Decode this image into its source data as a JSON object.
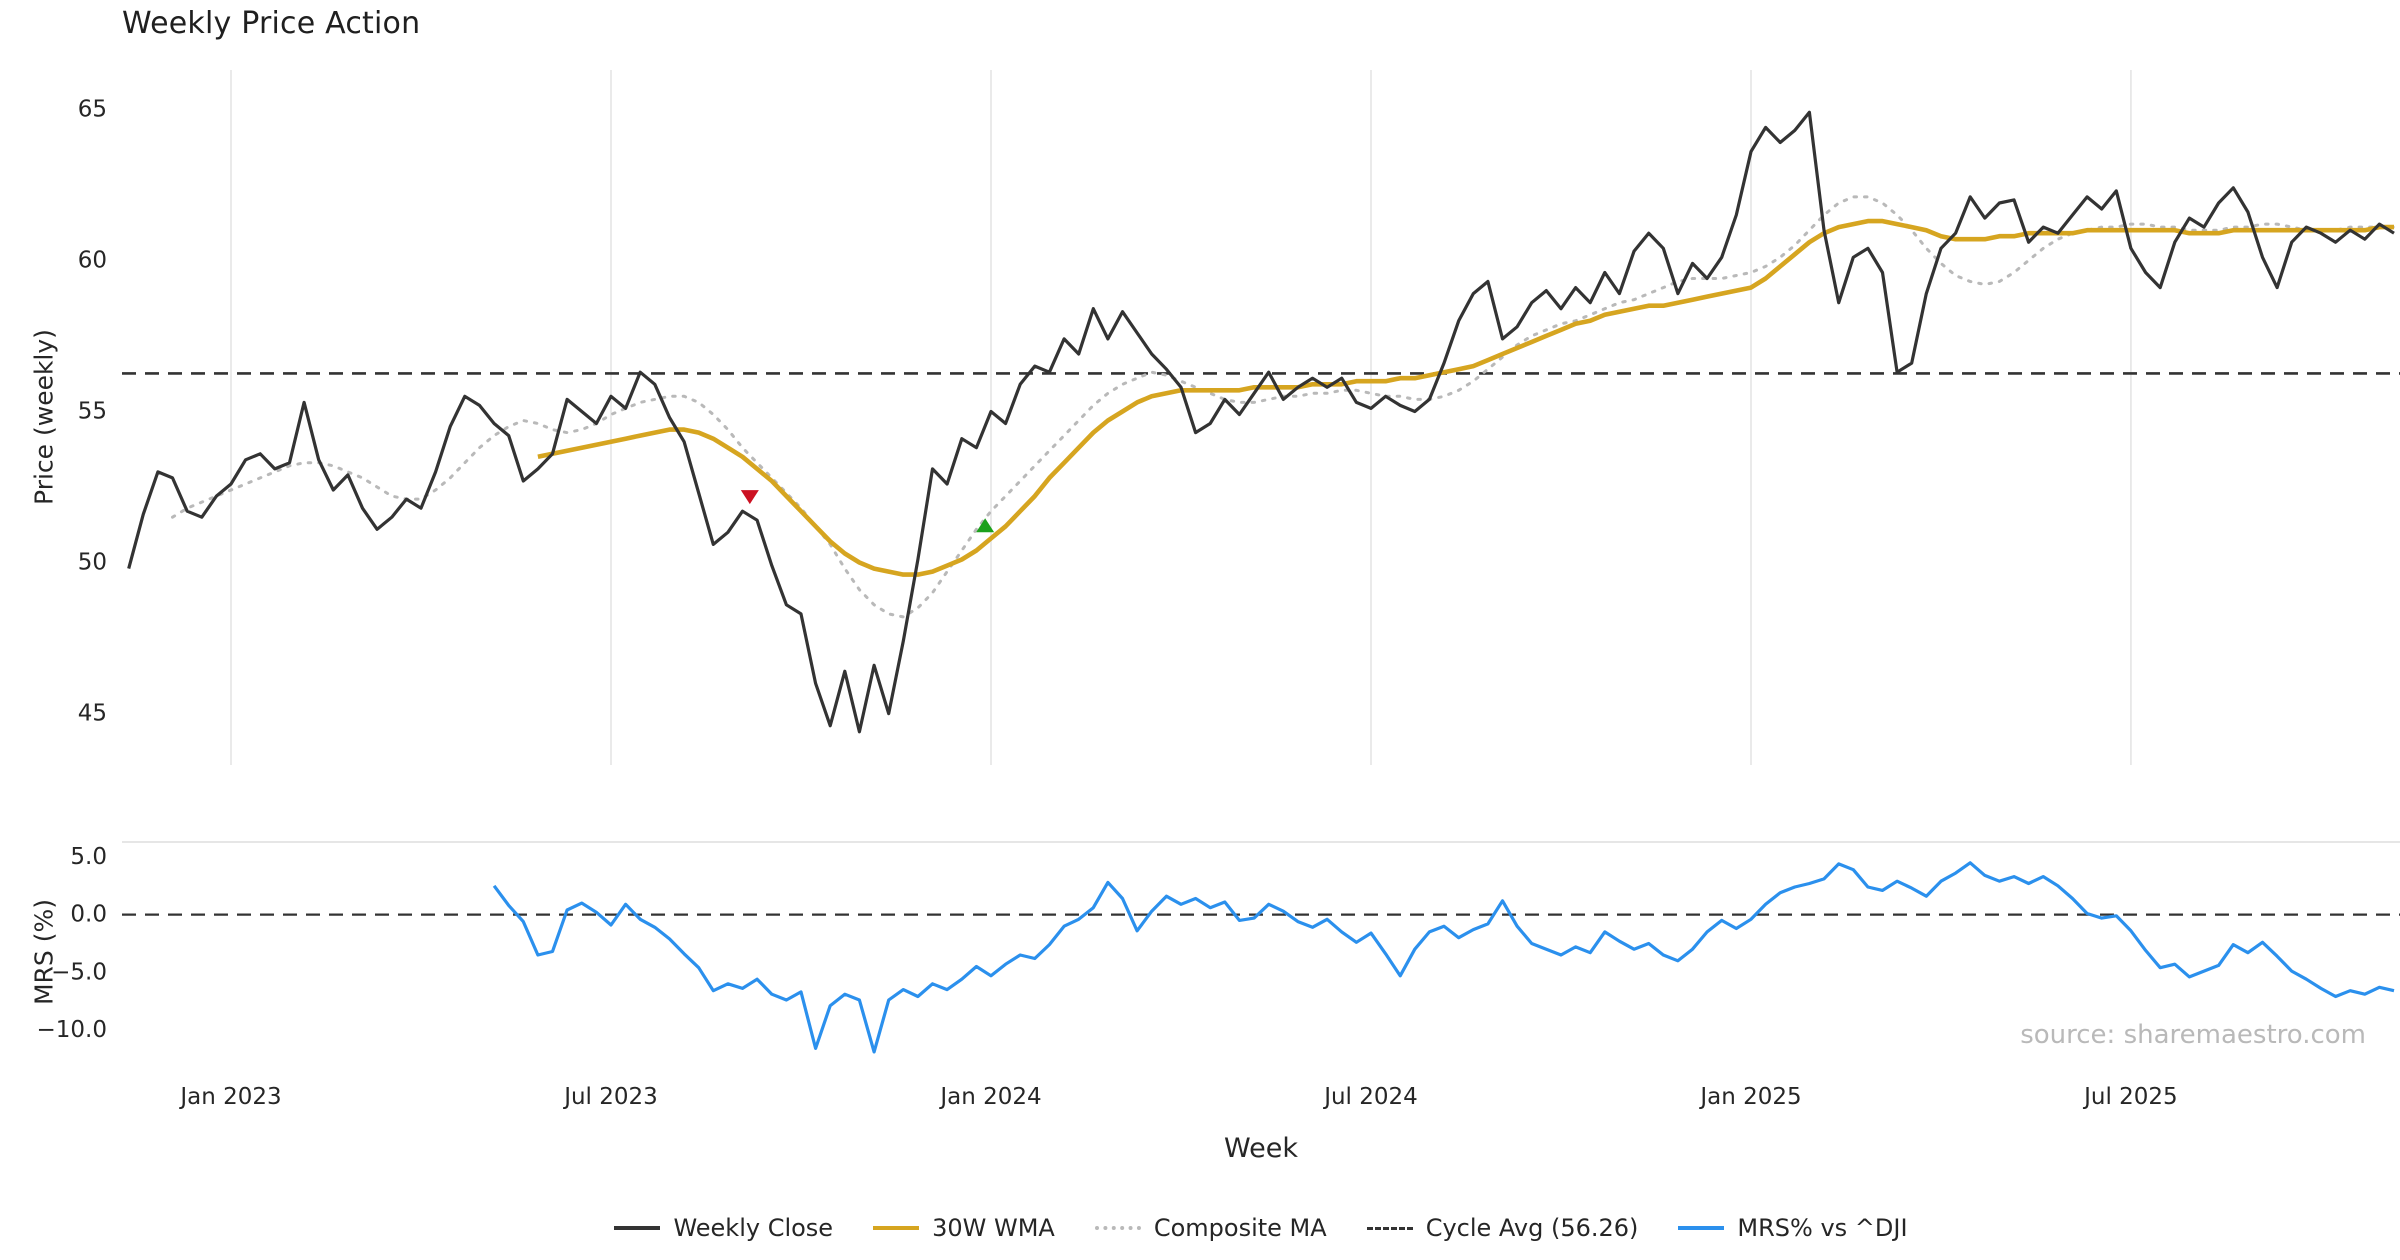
{
  "title": "Weekly Price Action",
  "source": "source: sharemaestro.com",
  "x_label": "Week",
  "x_ticks": [
    {
      "label": "Jan 2023",
      "week": 0
    },
    {
      "label": "Jul 2023",
      "week": 26
    },
    {
      "label": "Jan 2024",
      "week": 52
    },
    {
      "label": "Jul 2024",
      "week": 78
    },
    {
      "label": "Jan 2025",
      "week": 104
    },
    {
      "label": "Jul 2025",
      "week": 130
    }
  ],
  "colors": {
    "close": "#333333",
    "wma": "#d6a520",
    "composite": "#b9b9b9",
    "cycle_avg": "#333333",
    "mrs": "#2b90ed",
    "sell_marker": "#cc1122",
    "buy_marker": "#1ca01c",
    "grid": "#e8e8e8"
  },
  "chart_data": [
    {
      "type": "line",
      "panel": "price",
      "title": "Weekly Price Action",
      "ylabel": "Price (weekly)",
      "ylim": [
        43.3,
        66.3
      ],
      "grid": "vertical-only",
      "yticks": [
        {
          "label": "65",
          "value": 65
        },
        {
          "label": "60",
          "value": 60
        },
        {
          "label": "55",
          "value": 55
        },
        {
          "label": "50",
          "value": 50
        },
        {
          "label": "45",
          "value": 45
        }
      ],
      "series": [
        {
          "name": "Weekly Close",
          "color": "#333333",
          "style": "solid",
          "width": 3.2,
          "start_week": -7,
          "values": [
            49.8,
            51.6,
            53.0,
            52.8,
            51.7,
            51.5,
            52.2,
            52.6,
            53.4,
            53.6,
            53.1,
            53.3,
            55.3,
            53.4,
            52.4,
            52.9,
            51.8,
            51.1,
            51.5,
            52.1,
            51.8,
            53.0,
            54.5,
            55.5,
            55.2,
            54.6,
            54.2,
            52.7,
            53.1,
            53.6,
            55.4,
            55.0,
            54.6,
            55.5,
            55.1,
            56.3,
            55.9,
            54.8,
            54.0,
            52.3,
            50.6,
            51.0,
            51.7,
            51.4,
            49.9,
            48.6,
            48.3,
            46.0,
            44.6,
            46.4,
            44.4,
            46.6,
            45.0,
            47.4,
            50.1,
            53.1,
            52.6,
            54.1,
            53.8,
            55.0,
            54.6,
            55.9,
            56.5,
            56.3,
            57.4,
            56.9,
            58.4,
            57.4,
            58.3,
            57.6,
            56.9,
            56.4,
            55.8,
            54.3,
            54.6,
            55.4,
            54.9,
            55.6,
            56.3,
            55.4,
            55.8,
            56.1,
            55.8,
            56.1,
            55.3,
            55.1,
            55.5,
            55.2,
            55.0,
            55.4,
            56.6,
            58.0,
            58.9,
            59.3,
            57.4,
            57.8,
            58.6,
            59.0,
            58.4,
            59.1,
            58.6,
            59.6,
            58.9,
            60.3,
            60.9,
            60.4,
            58.9,
            59.9,
            59.4,
            60.1,
            61.5,
            63.6,
            64.4,
            63.9,
            64.3,
            64.9,
            61.0,
            58.6,
            60.1,
            60.4,
            59.6,
            56.3,
            56.6,
            58.9,
            60.4,
            60.9,
            62.1,
            61.4,
            61.9,
            62.0,
            60.6,
            61.1,
            60.9,
            61.5,
            62.1,
            61.7,
            62.3,
            60.4,
            59.6,
            59.1,
            60.6,
            61.4,
            61.1,
            61.9,
            62.4,
            61.6,
            60.1,
            59.1,
            60.6,
            61.1,
            60.9,
            60.6,
            61.0,
            60.7,
            61.2,
            60.9
          ]
        },
        {
          "name": "30W WMA",
          "color": "#d6a520",
          "style": "solid",
          "width": 4.6,
          "start_week": 21,
          "values": [
            53.5,
            53.6,
            53.7,
            53.8,
            53.9,
            54.0,
            54.1,
            54.2,
            54.3,
            54.4,
            54.4,
            54.3,
            54.1,
            53.8,
            53.5,
            53.1,
            52.7,
            52.2,
            51.7,
            51.2,
            50.7,
            50.3,
            50.0,
            49.8,
            49.7,
            49.6,
            49.6,
            49.7,
            49.9,
            50.1,
            50.4,
            50.8,
            51.2,
            51.7,
            52.2,
            52.8,
            53.3,
            53.8,
            54.3,
            54.7,
            55.0,
            55.3,
            55.5,
            55.6,
            55.7,
            55.7,
            55.7,
            55.7,
            55.7,
            55.8,
            55.8,
            55.8,
            55.8,
            55.9,
            55.9,
            55.9,
            56.0,
            56.0,
            56.0,
            56.1,
            56.1,
            56.2,
            56.3,
            56.4,
            56.5,
            56.7,
            56.9,
            57.1,
            57.3,
            57.5,
            57.7,
            57.9,
            58.0,
            58.2,
            58.3,
            58.4,
            58.5,
            58.5,
            58.6,
            58.7,
            58.8,
            58.9,
            59.0,
            59.1,
            59.4,
            59.8,
            60.2,
            60.6,
            60.9,
            61.1,
            61.2,
            61.3,
            61.3,
            61.2,
            61.1,
            61.0,
            60.8,
            60.7,
            60.7,
            60.7,
            60.8,
            60.8,
            60.9,
            60.9,
            60.9,
            60.9,
            61.0,
            61.0,
            61.0,
            61.0,
            61.0,
            61.0,
            61.0,
            60.9,
            60.9,
            60.9,
            61.0,
            61.0,
            61.0,
            61.0,
            61.0,
            61.0,
            61.0,
            61.0,
            61.0,
            61.0,
            61.1,
            61.1
          ]
        },
        {
          "name": "Composite MA",
          "color": "#b9b9b9",
          "style": "dotted",
          "width": 3.0,
          "start_week": -4,
          "values": [
            51.5,
            51.8,
            52.0,
            52.2,
            52.4,
            52.6,
            52.8,
            53.0,
            53.2,
            53.3,
            53.3,
            53.2,
            53.0,
            52.8,
            52.5,
            52.2,
            52.1,
            52.1,
            52.4,
            52.8,
            53.3,
            53.8,
            54.2,
            54.5,
            54.7,
            54.6,
            54.4,
            54.3,
            54.4,
            54.6,
            54.9,
            55.1,
            55.3,
            55.4,
            55.5,
            55.5,
            55.3,
            54.9,
            54.4,
            53.8,
            53.3,
            52.8,
            52.3,
            51.8,
            51.2,
            50.6,
            49.8,
            49.1,
            48.6,
            48.3,
            48.2,
            48.5,
            49.0,
            49.7,
            50.4,
            51.1,
            51.7,
            52.2,
            52.7,
            53.2,
            53.7,
            54.2,
            54.7,
            55.2,
            55.6,
            55.9,
            56.1,
            56.3,
            56.2,
            56.0,
            55.8,
            55.6,
            55.4,
            55.3,
            55.3,
            55.4,
            55.5,
            55.5,
            55.6,
            55.6,
            55.7,
            55.7,
            55.6,
            55.5,
            55.5,
            55.4,
            55.4,
            55.5,
            55.7,
            56.0,
            56.4,
            56.8,
            57.2,
            57.5,
            57.7,
            57.9,
            58.0,
            58.2,
            58.4,
            58.6,
            58.7,
            58.9,
            59.1,
            59.3,
            59.4,
            59.4,
            59.4,
            59.5,
            59.6,
            59.8,
            60.1,
            60.5,
            61.0,
            61.5,
            61.9,
            62.1,
            62.1,
            61.9,
            61.5,
            61.0,
            60.4,
            59.9,
            59.5,
            59.3,
            59.2,
            59.3,
            59.6,
            60.0,
            60.4,
            60.7,
            60.9,
            61.0,
            61.1,
            61.1,
            61.2,
            61.2,
            61.1,
            61.1,
            61.0,
            61.0,
            61.0,
            61.1,
            61.1,
            61.2,
            61.2,
            61.1,
            61.0,
            61.0,
            61.0,
            61.1,
            61.1,
            61.1,
            61.1
          ]
        },
        {
          "name": "Cycle Avg (56.26)",
          "type": "hline",
          "value": 56.26,
          "color": "#333333",
          "style": "dashed",
          "width": 2.6
        }
      ],
      "markers": [
        {
          "name": "sell-signal",
          "shape": "triangle-down",
          "color": "#cc1122",
          "week": 35.5,
          "value": 52.2
        },
        {
          "name": "buy-signal",
          "shape": "triangle-up",
          "color": "#1ca01c",
          "week": 51.6,
          "value": 51.2
        }
      ]
    },
    {
      "type": "line",
      "panel": "mrs",
      "ylabel": "MRS (%)",
      "ylim": [
        -13.3,
        6.3
      ],
      "yticks": [
        {
          "label": "5.0",
          "value": 5
        },
        {
          "label": "0.0",
          "value": 0
        },
        {
          "label": "−5.0",
          "value": -5
        },
        {
          "label": "−10.0",
          "value": -10
        }
      ],
      "series": [
        {
          "name": "MRS% vs ^DJI",
          "color": "#2b90ed",
          "style": "solid",
          "width": 3.2,
          "start_week": 18,
          "values": [
            2.5,
            0.8,
            -0.6,
            -3.5,
            -3.2,
            0.4,
            1.0,
            0.2,
            -0.9,
            0.9,
            -0.4,
            -1.1,
            -2.1,
            -3.4,
            -4.6,
            -6.6,
            -6.0,
            -6.4,
            -5.6,
            -6.9,
            -7.4,
            -6.7,
            -11.6,
            -7.9,
            -6.9,
            -7.4,
            -11.9,
            -7.4,
            -6.5,
            -7.1,
            -6.0,
            -6.5,
            -5.6,
            -4.5,
            -5.3,
            -4.3,
            -3.5,
            -3.8,
            -2.6,
            -1.0,
            -0.4,
            0.6,
            2.8,
            1.4,
            -1.4,
            0.3,
            1.6,
            0.9,
            1.4,
            0.6,
            1.1,
            -0.5,
            -0.3,
            0.9,
            0.3,
            -0.6,
            -1.1,
            -0.4,
            -1.5,
            -2.4,
            -1.6,
            -3.4,
            -5.3,
            -3.0,
            -1.5,
            -1.0,
            -2.0,
            -1.3,
            -0.8,
            1.2,
            -1.0,
            -2.5,
            -3.0,
            -3.5,
            -2.8,
            -3.3,
            -1.5,
            -2.3,
            -3.0,
            -2.5,
            -3.5,
            -4.0,
            -3.0,
            -1.5,
            -0.5,
            -1.2,
            -0.4,
            0.9,
            1.9,
            2.4,
            2.7,
            3.1,
            4.4,
            3.9,
            2.4,
            2.1,
            2.9,
            2.3,
            1.6,
            2.9,
            3.6,
            4.5,
            3.4,
            2.9,
            3.3,
            2.7,
            3.3,
            2.5,
            1.4,
            0.1,
            -0.3,
            -0.1,
            -1.4,
            -3.1,
            -4.6,
            -4.3,
            -5.4,
            -4.9,
            -4.4,
            -2.6,
            -3.3,
            -2.4,
            -3.6,
            -4.9,
            -5.6,
            -6.4,
            -7.1,
            -6.6,
            -6.9,
            -6.3,
            -6.6
          ]
        },
        {
          "name": "Zero Line",
          "type": "hline",
          "value": 0,
          "color": "#333333",
          "style": "dashed",
          "width": 2.3
        }
      ]
    }
  ],
  "legend": [
    {
      "label": "Weekly Close",
      "color": "#333333",
      "style": "solid"
    },
    {
      "label": "30W WMA",
      "color": "#d6a520",
      "style": "solid"
    },
    {
      "label": "Composite MA",
      "color": "#b9b9b9",
      "style": "dotted"
    },
    {
      "label": "Cycle Avg (56.26)",
      "color": "#333333",
      "style": "dashed"
    },
    {
      "label": "MRS% vs ^DJI",
      "color": "#2b90ed",
      "style": "solid"
    }
  ]
}
